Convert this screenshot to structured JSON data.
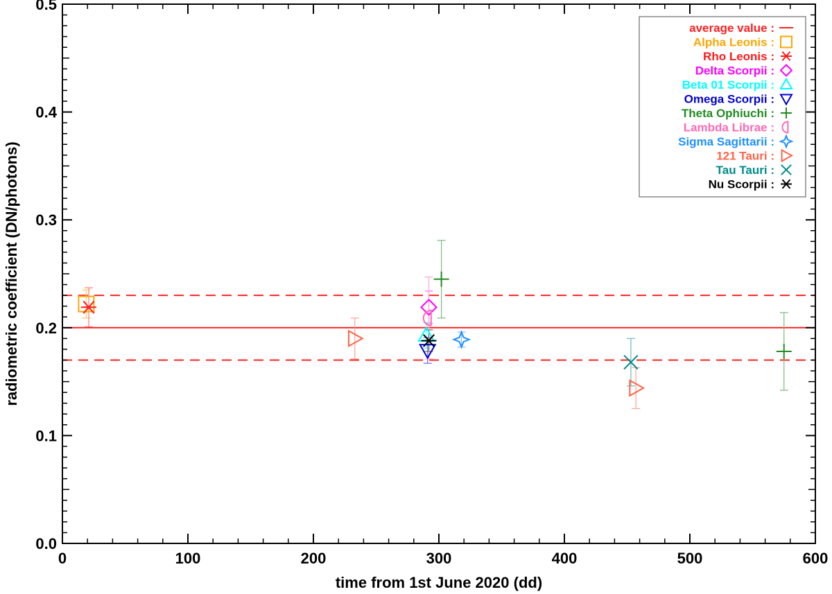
{
  "chart_data": {
    "type": "scatter",
    "title": "",
    "xlabel": "time from 1st June 2020 (dd)",
    "ylabel": "radiometric coefficient (DN/photons)",
    "xlim": [
      0,
      600
    ],
    "ylim": [
      0,
      0.5
    ],
    "x_ticks": [
      0,
      100,
      200,
      300,
      400,
      500,
      600
    ],
    "x_tick_labels": [
      "0",
      "100",
      "200",
      "300",
      "400",
      "500",
      "600"
    ],
    "y_ticks": [
      0.0,
      0.1,
      0.2,
      0.3,
      0.4,
      0.5
    ],
    "y_tick_labels": [
      "0.0",
      "0.1",
      "0.2",
      "0.3",
      "0.4",
      "0.5"
    ],
    "grid": false,
    "legend_position": "top-right",
    "reference_lines": [
      {
        "name": "average value",
        "y": 0.2,
        "style": "solid",
        "color": "#ff2020"
      },
      {
        "y": 0.23,
        "style": "dashed",
        "color": "#ff2020"
      },
      {
        "y": 0.17,
        "style": "dashed",
        "color": "#ff2020"
      }
    ],
    "series": [
      {
        "name": "Alpha Leonis",
        "label": "Alpha Leonis :",
        "color": "#ffa500",
        "marker": "square",
        "points": [
          {
            "x": 19,
            "y": 0.222,
            "err": 0.013
          }
        ]
      },
      {
        "name": "Rho Leonis",
        "label": "Rho Leonis :",
        "color": "#ff1a1a",
        "marker": "asterisk",
        "points": [
          {
            "x": 21,
            "y": 0.219,
            "err": 0.018
          }
        ]
      },
      {
        "name": "Delta Scorpii",
        "label": "Delta Scorpii :",
        "color": "#ff00ff",
        "marker": "diamond",
        "points": [
          {
            "x": 292,
            "y": 0.219,
            "err": 0.015
          }
        ]
      },
      {
        "name": "Beta 01 Scorpii",
        "label": "Beta 01 Scorpii :",
        "color": "#00ffff",
        "marker": "triangle-up",
        "points": [
          {
            "x": 290,
            "y": 0.193,
            "err": 0.012
          }
        ]
      },
      {
        "name": "Omega Scorpii",
        "label": "Omega Scorpii :",
        "color": "#0000cd",
        "marker": "triangle-down",
        "points": [
          {
            "x": 291,
            "y": 0.179,
            "err": 0.012
          }
        ]
      },
      {
        "name": "Theta Ophiuchi",
        "label": "Theta Ophiuchi :",
        "color": "#228b22",
        "marker": "plus",
        "points": [
          {
            "x": 302,
            "y": 0.245,
            "err": 0.036
          },
          {
            "x": 575,
            "y": 0.178,
            "err": 0.036
          }
        ]
      },
      {
        "name": "Lambda Librae",
        "label": "Lambda Librae :",
        "color": "#ff69b4",
        "marker": "half-circle",
        "points": [
          {
            "x": 292,
            "y": 0.209,
            "err": 0.038
          }
        ]
      },
      {
        "name": "Sigma Sagittarii",
        "label": "Sigma Sagittarii :",
        "color": "#1e90ff",
        "marker": "star4",
        "points": [
          {
            "x": 318,
            "y": 0.189,
            "err": 0.007
          }
        ]
      },
      {
        "name": "121 Tauri",
        "label": "121 Tauri :",
        "color": "#ff6347",
        "marker": "triangle-right",
        "points": [
          {
            "x": 233,
            "y": 0.19,
            "err": 0.019
          },
          {
            "x": 457,
            "y": 0.144,
            "err": 0.019
          }
        ]
      },
      {
        "name": "Tau Tauri",
        "label": "Tau Tauri :",
        "color": "#008b8b",
        "marker": "x",
        "points": [
          {
            "x": 453,
            "y": 0.168,
            "err": 0.022
          }
        ]
      },
      {
        "name": "Nu Scorpii",
        "label": "Nu Scorpii :",
        "color": "#000000",
        "marker": "asterisk",
        "points": [
          {
            "x": 292,
            "y": 0.188,
            "err": 0.01
          }
        ]
      }
    ]
  }
}
